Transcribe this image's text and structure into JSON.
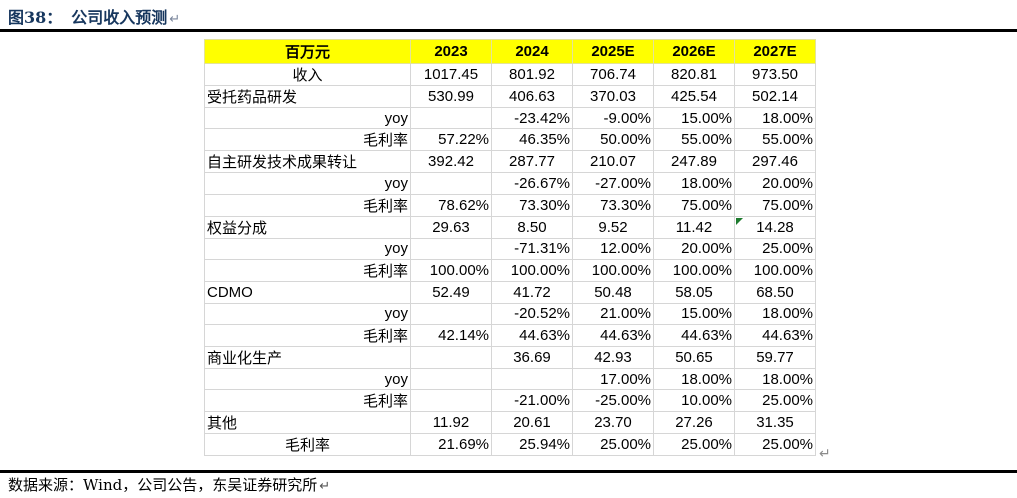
{
  "title": {
    "figure_label": "图38：",
    "text": "公司收入预测",
    "return_mark": "↵"
  },
  "table": {
    "header": [
      "百万元",
      "2023",
      "2024",
      "2025E",
      "2026E",
      "2027E"
    ],
    "rows": [
      {
        "label": "收入",
        "label_align": "center",
        "value_align": "center",
        "values": [
          "1017.45",
          "801.92",
          "706.74",
          "820.81",
          "973.50"
        ]
      },
      {
        "label": "受托药品研发",
        "label_align": "left",
        "value_align": "center",
        "values": [
          "530.99",
          "406.63",
          "370.03",
          "425.54",
          "502.14"
        ]
      },
      {
        "label": "yoy",
        "label_align": "right",
        "value_align": "right",
        "values": [
          "",
          "-23.42%",
          "-9.00%",
          "15.00%",
          "18.00%"
        ]
      },
      {
        "label": "毛利率",
        "label_align": "right",
        "value_align": "right",
        "values": [
          "57.22%",
          "46.35%",
          "50.00%",
          "55.00%",
          "55.00%"
        ]
      },
      {
        "label": "自主研发技术成果转让",
        "label_align": "left",
        "value_align": "center",
        "values": [
          "392.42",
          "287.77",
          "210.07",
          "247.89",
          "297.46"
        ]
      },
      {
        "label": "yoy",
        "label_align": "right",
        "value_align": "right",
        "values": [
          "",
          "-26.67%",
          "-27.00%",
          "18.00%",
          "20.00%"
        ]
      },
      {
        "label": "毛利率",
        "label_align": "right",
        "value_align": "right",
        "values": [
          "78.62%",
          "73.30%",
          "73.30%",
          "75.00%",
          "75.00%"
        ]
      },
      {
        "label": "权益分成",
        "label_align": "left",
        "value_align": "center",
        "values": [
          "29.63",
          "8.50",
          "9.52",
          "11.42",
          "14.28"
        ],
        "flag_col": 4
      },
      {
        "label": "yoy",
        "label_align": "right",
        "value_align": "right",
        "values": [
          "",
          "-71.31%",
          "12.00%",
          "20.00%",
          "25.00%"
        ]
      },
      {
        "label": "毛利率",
        "label_align": "right",
        "value_align": "right",
        "values": [
          "100.00%",
          "100.00%",
          "100.00%",
          "100.00%",
          "100.00%"
        ]
      },
      {
        "label": "CDMO",
        "label_align": "left",
        "value_align": "center",
        "values": [
          "52.49",
          "41.72",
          "50.48",
          "58.05",
          "68.50"
        ]
      },
      {
        "label": "yoy",
        "label_align": "right",
        "value_align": "right",
        "values": [
          "",
          "-20.52%",
          "21.00%",
          "15.00%",
          "18.00%"
        ]
      },
      {
        "label": "毛利率",
        "label_align": "right",
        "value_align": "right",
        "values": [
          "42.14%",
          "44.63%",
          "44.63%",
          "44.63%",
          "44.63%"
        ]
      },
      {
        "label": "商业化生产",
        "label_align": "left",
        "value_align": "center",
        "values": [
          "",
          "36.69",
          "42.93",
          "50.65",
          "59.77"
        ]
      },
      {
        "label": "yoy",
        "label_align": "right",
        "value_align": "right",
        "values": [
          "",
          "",
          "17.00%",
          "18.00%",
          "18.00%"
        ]
      },
      {
        "label": "毛利率",
        "label_align": "right",
        "value_align": "right",
        "values": [
          "",
          "-21.00%",
          "-25.00%",
          "10.00%",
          "25.00%"
        ]
      },
      {
        "label": "其他",
        "label_align": "left",
        "value_align": "center",
        "values": [
          "11.92",
          "20.61",
          "23.70",
          "27.26",
          "31.35"
        ]
      },
      {
        "label": "毛利率",
        "label_align": "center",
        "value_align": "right",
        "values": [
          "21.69%",
          "25.94%",
          "25.00%",
          "25.00%",
          "25.00%"
        ]
      }
    ],
    "end_mark": "↵"
  },
  "source": {
    "text": "数据来源：Wind，公司公告，东吴证券研究所",
    "return_mark": "↵"
  },
  "colors": {
    "title_navy": "#17375E",
    "header_yellow": "#FFFF00",
    "grid_gray": "#D6D6D6",
    "rule_black": "#000000",
    "flag_green": "#1E7B2E",
    "mark_gray": "#8C8C8C"
  }
}
